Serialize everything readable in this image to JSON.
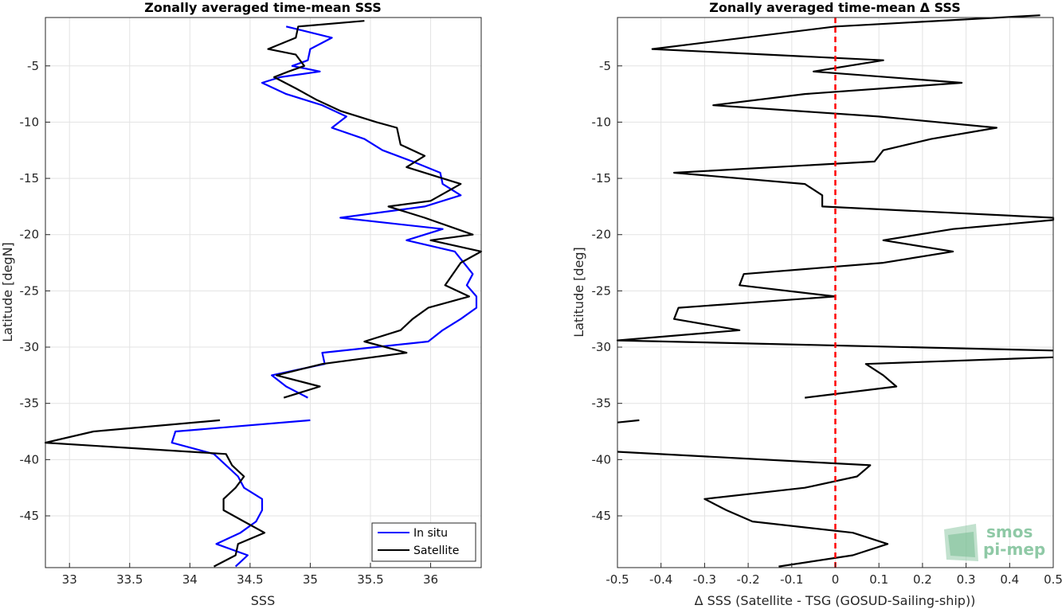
{
  "chart_data": [
    {
      "type": "line",
      "title": "Zonally averaged time-mean SSS",
      "xlabel": "SSS",
      "ylabel": "Latitude [degN]",
      "xlim": [
        32.8,
        36.42
      ],
      "ylim": [
        -49.6,
        -0.7
      ],
      "xticks": [
        33,
        33.5,
        34,
        34.5,
        35,
        35.5,
        36
      ],
      "xtick_labels": [
        "33",
        "33.5",
        "34",
        "34.5",
        "35",
        "35.5",
        "36"
      ],
      "yticks": [
        -5,
        -10,
        -15,
        -20,
        -25,
        -30,
        -35,
        -40,
        -45
      ],
      "ytick_labels": [
        "-5",
        "-10",
        "-15",
        "-20",
        "-25",
        "-30",
        "-35",
        "-40",
        "-45"
      ],
      "grid": true,
      "legend_position": "bottom-right",
      "series": [
        {
          "name": "In situ",
          "color": "#0000ff",
          "segments": [
            [
              [
                34.8,
                -1.5
              ],
              [
                35.18,
                -2.5
              ],
              [
                35.0,
                -3.5
              ],
              [
                34.98,
                -4.5
              ],
              [
                34.85,
                -5.0
              ],
              [
                35.08,
                -5.5
              ],
              [
                34.75,
                -6.0
              ],
              [
                34.6,
                -6.5
              ],
              [
                34.8,
                -7.5
              ],
              [
                35.1,
                -8.5
              ],
              [
                35.3,
                -9.5
              ],
              [
                35.18,
                -10.5
              ],
              [
                35.45,
                -11.5
              ],
              [
                35.6,
                -12.5
              ],
              [
                35.85,
                -13.5
              ],
              [
                36.08,
                -14.5
              ],
              [
                36.1,
                -15.5
              ],
              [
                36.25,
                -16.5
              ],
              [
                35.95,
                -17.5
              ],
              [
                35.25,
                -18.5
              ],
              [
                36.1,
                -19.5
              ],
              [
                35.8,
                -20.5
              ],
              [
                36.2,
                -21.5
              ],
              [
                36.35,
                -23.5
              ],
              [
                36.3,
                -24.5
              ],
              [
                36.38,
                -25.5
              ],
              [
                36.38,
                -26.5
              ],
              [
                36.25,
                -27.5
              ],
              [
                36.1,
                -28.5
              ],
              [
                35.98,
                -29.5
              ],
              [
                35.1,
                -30.5
              ],
              [
                35.12,
                -31.5
              ],
              [
                34.68,
                -32.5
              ],
              [
                34.8,
                -33.5
              ],
              [
                34.98,
                -34.5
              ]
            ],
            [
              [
                35.0,
                -36.5
              ],
              [
                33.88,
                -37.5
              ],
              [
                33.85,
                -38.5
              ],
              [
                34.2,
                -39.5
              ],
              [
                34.3,
                -40.5
              ],
              [
                34.4,
                -41.5
              ],
              [
                34.45,
                -42.5
              ],
              [
                34.6,
                -43.5
              ],
              [
                34.6,
                -44.5
              ],
              [
                34.55,
                -45.5
              ],
              [
                34.42,
                -46.5
              ],
              [
                34.22,
                -47.5
              ],
              [
                34.48,
                -48.5
              ],
              [
                34.38,
                -49.5
              ]
            ]
          ]
        },
        {
          "name": "Satellite",
          "color": "#000000",
          "segments": [
            [
              [
                35.45,
                -1.0
              ],
              [
                34.9,
                -1.5
              ],
              [
                34.88,
                -2.5
              ],
              [
                34.65,
                -3.5
              ],
              [
                34.88,
                -4.0
              ],
              [
                34.95,
                -5.0
              ],
              [
                34.82,
                -5.5
              ],
              [
                34.7,
                -6.0
              ],
              [
                34.88,
                -7.0
              ],
              [
                35.05,
                -8.0
              ],
              [
                35.25,
                -9.0
              ],
              [
                35.55,
                -10.0
              ],
              [
                35.72,
                -10.5
              ],
              [
                35.75,
                -12.0
              ],
              [
                35.95,
                -13.0
              ],
              [
                35.8,
                -14.0
              ],
              [
                36.1,
                -15.0
              ],
              [
                36.25,
                -15.5
              ],
              [
                36.0,
                -17.0
              ],
              [
                35.65,
                -17.5
              ],
              [
                35.95,
                -18.5
              ],
              [
                36.35,
                -20.0
              ],
              [
                36.0,
                -20.5
              ],
              [
                36.42,
                -21.5
              ],
              [
                36.25,
                -22.5
              ],
              [
                36.12,
                -24.5
              ],
              [
                36.32,
                -25.5
              ],
              [
                35.98,
                -26.5
              ],
              [
                35.85,
                -27.5
              ],
              [
                35.75,
                -28.5
              ],
              [
                35.45,
                -29.5
              ],
              [
                35.8,
                -30.5
              ],
              [
                35.1,
                -31.5
              ],
              [
                34.72,
                -32.5
              ],
              [
                35.08,
                -33.5
              ],
              [
                34.78,
                -34.5
              ]
            ],
            [
              [
                34.25,
                -36.5
              ],
              [
                33.2,
                -37.5
              ],
              [
                32.8,
                -38.5
              ],
              [
                34.3,
                -39.5
              ],
              [
                34.35,
                -40.5
              ],
              [
                34.45,
                -41.5
              ],
              [
                34.38,
                -42.5
              ],
              [
                34.28,
                -43.5
              ],
              [
                34.28,
                -44.5
              ],
              [
                34.45,
                -45.5
              ],
              [
                34.62,
                -46.5
              ],
              [
                34.4,
                -47.5
              ],
              [
                34.38,
                -48.5
              ],
              [
                34.2,
                -49.5
              ]
            ]
          ]
        }
      ]
    },
    {
      "type": "line",
      "title": "Zonally averaged time-mean Δ SSS",
      "xlabel": "Δ SSS (Satellite - TSG (GOSUD-Sailing-ship))",
      "ylabel": "Latitude [deg]",
      "xlim": [
        -0.5,
        0.5
      ],
      "ylim": [
        -49.6,
        -0.7
      ],
      "xticks": [
        -0.5,
        -0.4,
        -0.3,
        -0.2,
        -0.1,
        0,
        0.1,
        0.2,
        0.3,
        0.4,
        0.5
      ],
      "xtick_labels": [
        "-0.5",
        "-0.4",
        "-0.3",
        "-0.2",
        "-0.1",
        "0",
        "0.1",
        "0.2",
        "0.3",
        "0.4",
        "0.5"
      ],
      "yticks": [
        -5,
        -10,
        -15,
        -20,
        -25,
        -30,
        -35,
        -40,
        -45
      ],
      "ytick_labels": [
        "-5",
        "-10",
        "-15",
        "-20",
        "-25",
        "-30",
        "-35",
        "-40",
        "-45"
      ],
      "grid": true,
      "reference_line": {
        "x": 0,
        "color": "#ff0000",
        "style": "dashed"
      },
      "series": [
        {
          "color": "#000000",
          "segments": [
            [
              [
                0.47,
                -0.5
              ],
              [
                0.0,
                -1.5
              ],
              [
                -0.42,
                -3.5
              ],
              [
                0.11,
                -4.5
              ],
              [
                -0.05,
                -5.5
              ],
              [
                0.29,
                -6.5
              ],
              [
                -0.07,
                -7.5
              ],
              [
                -0.28,
                -8.5
              ],
              [
                0.1,
                -9.5
              ],
              [
                0.37,
                -10.5
              ],
              [
                0.22,
                -11.5
              ],
              [
                0.11,
                -12.5
              ],
              [
                0.09,
                -13.5
              ],
              [
                -0.37,
                -14.5
              ],
              [
                -0.07,
                -15.5
              ],
              [
                -0.03,
                -16.5
              ],
              [
                -0.03,
                -17.5
              ],
              [
                0.5,
                -18.5
              ],
              [
                0.5,
                -18.7
              ],
              [
                0.27,
                -19.5
              ],
              [
                0.11,
                -20.5
              ],
              [
                0.27,
                -21.5
              ],
              [
                0.11,
                -22.5
              ],
              [
                -0.21,
                -23.5
              ],
              [
                -0.22,
                -24.5
              ],
              [
                0.0,
                -25.5
              ],
              [
                -0.36,
                -26.5
              ],
              [
                -0.37,
                -27.5
              ],
              [
                -0.22,
                -28.5
              ],
              [
                -0.5,
                -29.4
              ],
              [
                0.5,
                -30.3
              ]
            ],
            [
              [
                0.5,
                -30.9
              ],
              [
                0.07,
                -31.5
              ],
              [
                0.11,
                -32.5
              ],
              [
                0.14,
                -33.5
              ],
              [
                -0.07,
                -34.5
              ]
            ],
            [
              [
                -0.45,
                -36.5
              ],
              [
                -0.5,
                -36.7
              ]
            ],
            [
              [
                -0.5,
                -39.3
              ],
              [
                0.08,
                -40.5
              ],
              [
                0.05,
                -41.5
              ],
              [
                -0.07,
                -42.5
              ],
              [
                -0.3,
                -43.5
              ],
              [
                -0.25,
                -44.5
              ],
              [
                -0.19,
                -45.5
              ],
              [
                0.04,
                -46.5
              ],
              [
                0.12,
                -47.5
              ],
              [
                0.04,
                -48.5
              ],
              [
                -0.13,
                -49.5
              ]
            ]
          ]
        }
      ]
    }
  ],
  "logo": {
    "line1": "smos",
    "line2": "pi-mep",
    "color": "#8fc9a6"
  }
}
